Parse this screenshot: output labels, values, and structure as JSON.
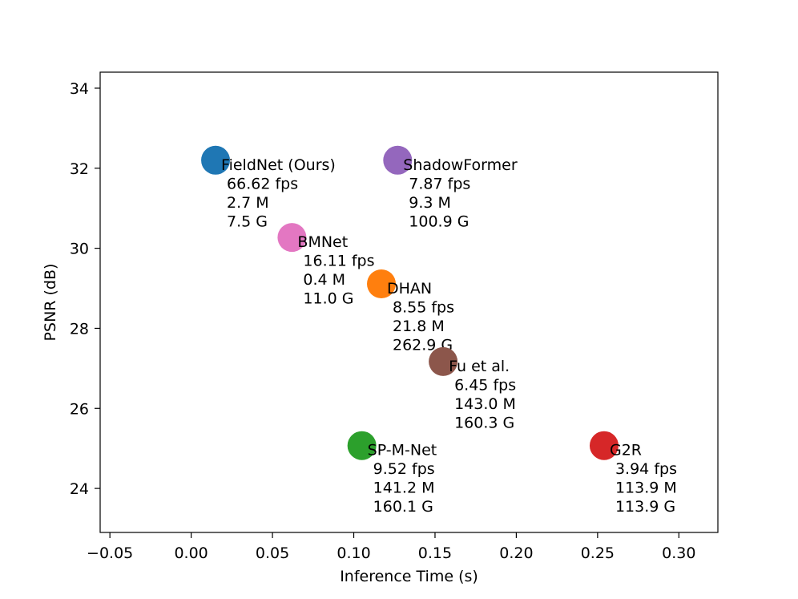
{
  "chart_data": {
    "type": "scatter",
    "title": "",
    "xlabel": "Inference Time (s)",
    "ylabel": "PSNR (dB)",
    "xlim": [
      -0.056,
      0.324
    ],
    "ylim": [
      22.9,
      34.4
    ],
    "xticks": [
      -0.05,
      0.0,
      0.05,
      0.1,
      0.15,
      0.2,
      0.25,
      0.3
    ],
    "xtick_labels": [
      "−0.05",
      "0.00",
      "0.05",
      "0.10",
      "0.15",
      "0.20",
      "0.25",
      "0.30"
    ],
    "yticks": [
      24,
      26,
      28,
      30,
      32,
      34
    ],
    "ytick_labels": [
      "24",
      "26",
      "28",
      "30",
      "32",
      "34"
    ],
    "grid": false,
    "points": [
      {
        "name": "FieldNet (Ours)",
        "x": 0.015,
        "y": 32.2,
        "color": "#1f77b4",
        "fps": "66.62 fps",
        "params": "2.7 M",
        "flops": "7.5 G"
      },
      {
        "name": "ShadowFormer",
        "x": 0.127,
        "y": 32.2,
        "color": "#9467bd",
        "fps": "7.87 fps",
        "params": "9.3 M",
        "flops": "100.9 G"
      },
      {
        "name": "BMNet",
        "x": 0.062,
        "y": 30.27,
        "color": "#e377c2",
        "fps": "16.11 fps",
        "params": "0.4 M",
        "flops": "11.0 G"
      },
      {
        "name": "DHAN",
        "x": 0.117,
        "y": 29.11,
        "color": "#ff7f0e",
        "fps": "8.55 fps",
        "params": "21.8 M",
        "flops": "262.9 G"
      },
      {
        "name": "Fu et al.",
        "x": 0.155,
        "y": 27.17,
        "color": "#8c564b",
        "fps": "6.45 fps",
        "params": "143.0 M",
        "flops": "160.3 G"
      },
      {
        "name": "SP-M-Net",
        "x": 0.105,
        "y": 25.07,
        "color": "#2ca02c",
        "fps": "9.52 fps",
        "params": "141.2 M",
        "flops": "160.1 G"
      },
      {
        "name": "G2R",
        "x": 0.254,
        "y": 25.07,
        "color": "#d62728",
        "fps": "3.94 fps",
        "params": "113.9 M",
        "flops": "113.9 G"
      }
    ]
  }
}
